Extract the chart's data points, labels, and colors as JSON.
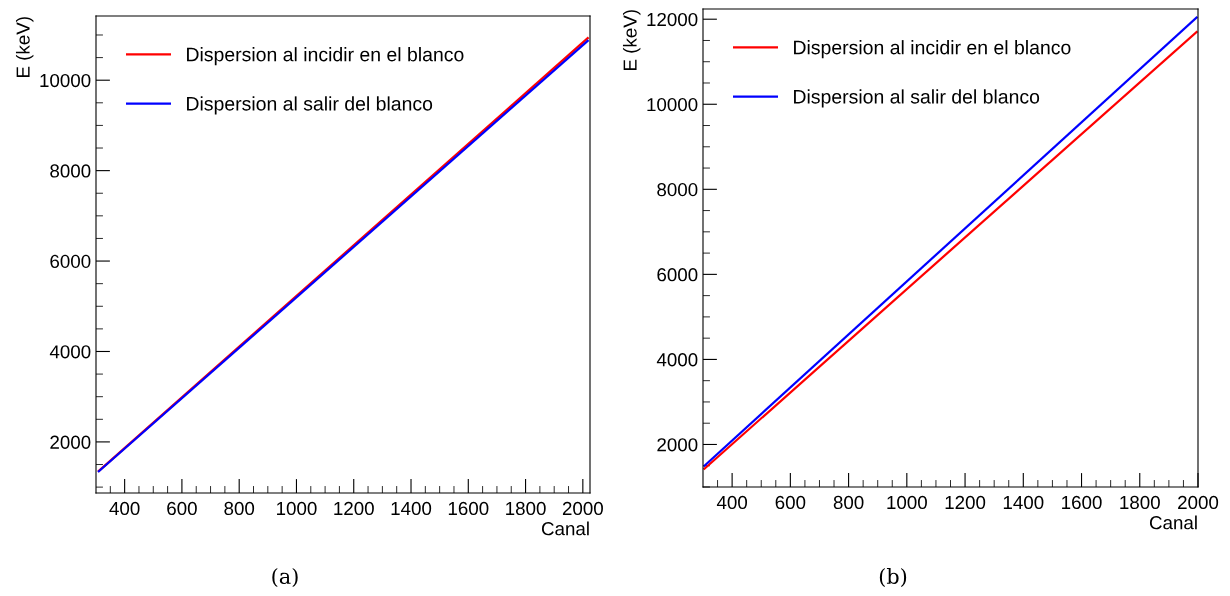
{
  "chart_data": [
    {
      "type": "line",
      "xlabel": "Canal",
      "ylabel": "E (keV)",
      "legend": "top left",
      "annotations": [
        "(a)"
      ],
      "xlim": [
        300,
        2025
      ],
      "ylim": [
        870,
        11420
      ],
      "xticks": [
        {
          "value": 350,
          "label": null
        },
        400,
        {
          "value": 450,
          "label": null
        },
        {
          "value": 500,
          "label": null
        },
        {
          "value": 550,
          "label": null
        },
        600,
        {
          "value": 650,
          "label": null
        },
        {
          "value": 700,
          "label": null
        },
        {
          "value": 750,
          "label": null
        },
        800,
        {
          "value": 850,
          "label": null
        },
        {
          "value": 900,
          "label": null
        },
        {
          "value": 950,
          "label": null
        },
        1000,
        {
          "value": 1050,
          "label": null
        },
        {
          "value": 1100,
          "label": null
        },
        {
          "value": 1150,
          "label": null
        },
        1200,
        {
          "value": 1250,
          "label": null
        },
        {
          "value": 1300,
          "label": null
        },
        {
          "value": 1350,
          "label": null
        },
        1400,
        {
          "value": 1450,
          "label": null
        },
        {
          "value": 1500,
          "label": null
        },
        {
          "value": 1550,
          "label": null
        },
        1600,
        {
          "value": 1650,
          "label": null
        },
        {
          "value": 1700,
          "label": null
        },
        {
          "value": 1750,
          "label": null
        },
        1800,
        {
          "value": 1850,
          "label": null
        },
        {
          "value": 1900,
          "label": null
        },
        {
          "value": 1950,
          "label": null
        },
        2000
      ],
      "yticks": [
        {
          "value": 1000,
          "label": null
        },
        {
          "value": 1500,
          "label": null
        },
        2000,
        {
          "value": 2500,
          "label": null
        },
        {
          "value": 3000,
          "label": null
        },
        {
          "value": 3500,
          "label": null
        },
        4000,
        {
          "value": 4500,
          "label": null
        },
        {
          "value": 5000,
          "label": null
        },
        {
          "value": 5500,
          "label": null
        },
        6000,
        {
          "value": 6500,
          "label": null
        },
        {
          "value": 7000,
          "label": null
        },
        {
          "value": 7500,
          "label": null
        },
        8000,
        {
          "value": 8500,
          "label": null
        },
        {
          "value": 9000,
          "label": null
        },
        {
          "value": 9500,
          "label": null
        },
        10000,
        {
          "value": 10500,
          "label": null
        },
        {
          "value": 11000,
          "label": null
        }
      ],
      "series": [
        {
          "name": "Dispersion al incidir en el blanco",
          "color": "#ff0000",
          "x": [
            310,
            2017
          ],
          "values": [
            1360,
            10930
          ]
        },
        {
          "name": "Dispersion al salir del blanco",
          "color": "#0000ff",
          "x": [
            310,
            2017
          ],
          "values": [
            1350,
            10870
          ]
        }
      ]
    },
    {
      "type": "line",
      "xlabel": "Canal",
      "ylabel": "E (keV)",
      "legend": "top left",
      "annotations": [
        "(b)"
      ],
      "xlim": [
        300,
        2000
      ],
      "ylim": [
        1000,
        12240
      ],
      "xticks": [
        {
          "value": 350,
          "label": null
        },
        400,
        {
          "value": 450,
          "label": null
        },
        {
          "value": 500,
          "label": null
        },
        {
          "value": 550,
          "label": null
        },
        600,
        {
          "value": 650,
          "label": null
        },
        {
          "value": 700,
          "label": null
        },
        {
          "value": 750,
          "label": null
        },
        800,
        {
          "value": 850,
          "label": null
        },
        {
          "value": 900,
          "label": null
        },
        {
          "value": 950,
          "label": null
        },
        1000,
        {
          "value": 1050,
          "label": null
        },
        {
          "value": 1100,
          "label": null
        },
        {
          "value": 1150,
          "label": null
        },
        1200,
        {
          "value": 1250,
          "label": null
        },
        {
          "value": 1300,
          "label": null
        },
        {
          "value": 1350,
          "label": null
        },
        1400,
        {
          "value": 1450,
          "label": null
        },
        {
          "value": 1500,
          "label": null
        },
        {
          "value": 1550,
          "label": null
        },
        1600,
        {
          "value": 1650,
          "label": null
        },
        {
          "value": 1700,
          "label": null
        },
        {
          "value": 1750,
          "label": null
        },
        1800,
        {
          "value": 1850,
          "label": null
        },
        {
          "value": 1900,
          "label": null
        },
        {
          "value": 1950,
          "label": null
        },
        2000
      ],
      "yticks": [
        {
          "value": 1000,
          "label": null
        },
        {
          "value": 1500,
          "label": null
        },
        2000,
        {
          "value": 2500,
          "label": null
        },
        {
          "value": 3000,
          "label": null
        },
        {
          "value": 3500,
          "label": null
        },
        4000,
        {
          "value": 4500,
          "label": null
        },
        {
          "value": 5000,
          "label": null
        },
        {
          "value": 5500,
          "label": null
        },
        6000,
        {
          "value": 6500,
          "label": null
        },
        {
          "value": 7000,
          "label": null
        },
        {
          "value": 7500,
          "label": null
        },
        8000,
        {
          "value": 8500,
          "label": null
        },
        {
          "value": 9000,
          "label": null
        },
        {
          "value": 9500,
          "label": null
        },
        10000,
        {
          "value": 10500,
          "label": null
        },
        {
          "value": 11000,
          "label": null
        },
        {
          "value": 11500,
          "label": null
        },
        12000
      ],
      "series": [
        {
          "name": "Dispersion al incidir en el blanco",
          "color": "#ff0000",
          "x": [
            305,
            1995
          ],
          "values": [
            1430,
            11700
          ]
        },
        {
          "name": "Dispersion al salir del blanco",
          "color": "#0000ff",
          "x": [
            305,
            1995
          ],
          "values": [
            1500,
            12040
          ]
        }
      ]
    }
  ]
}
